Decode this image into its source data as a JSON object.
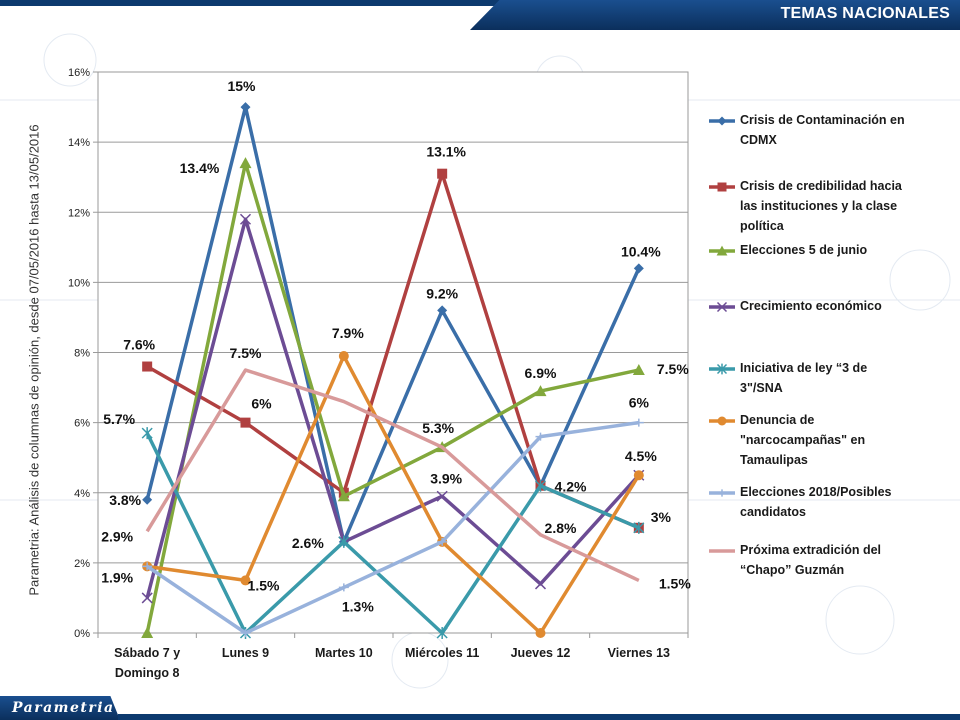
{
  "header": {
    "title": "TEMAS NACIONALES"
  },
  "side_caption": "Parametria: Análisis de columnas de opinión, desde 07/05/2016 hasta  13/05/2016",
  "footer": {
    "logo_text": "Parametria"
  },
  "chart_data": {
    "type": "line",
    "categories": [
      [
        "Sábado 7 y",
        "Domingo 8"
      ],
      [
        "Lunes 9"
      ],
      [
        "Martes 10"
      ],
      [
        "Miércoles 11"
      ],
      [
        "Jueves 12"
      ],
      [
        "Viernes 13"
      ]
    ],
    "y_ticks": [
      "0%",
      "2%",
      "4%",
      "6%",
      "8%",
      "10%",
      "12%",
      "14%",
      "16%"
    ],
    "ylim": [
      0,
      16
    ],
    "grid": true,
    "legend_position": "right",
    "series": [
      {
        "name": "Crisis de Contaminación en CDMX",
        "legend_lines": [
          "Crisis de Contaminación en",
          "CDMX"
        ],
        "color": "#3a6ea8",
        "marker": "diamond",
        "values": [
          3.8,
          15,
          2.6,
          9.2,
          4.2,
          10.4
        ],
        "labels": [
          "3.8%",
          "15%",
          "",
          "9.2%",
          "",
          "10.4%"
        ]
      },
      {
        "name": "Crisis de credibilidad hacia las instituciones y la clase política",
        "legend_lines": [
          "Crisis de credibilidad hacia",
          "las instituciones y la clase",
          "política"
        ],
        "color": "#b04040",
        "marker": "square",
        "values": [
          7.6,
          6,
          4,
          13.1,
          4.2,
          3
        ],
        "labels": [
          "7.6%",
          "6%",
          "",
          "13.1%",
          "4.2%",
          "3%"
        ]
      },
      {
        "name": "Elecciones 5 de junio",
        "legend_lines": [
          "Elecciones 5 de junio"
        ],
        "color": "#82a83c",
        "marker": "triangle",
        "values": [
          0,
          13.4,
          3.9,
          5.3,
          6.9,
          7.5
        ],
        "labels": [
          "",
          "13.4%",
          "",
          "5.3%",
          "6.9%",
          "7.5%"
        ]
      },
      {
        "name": "Crecimiento económico",
        "legend_lines": [
          "Crecimiento económico"
        ],
        "color": "#6c4c94",
        "marker": "x",
        "values": [
          1,
          11.8,
          2.6,
          3.9,
          1.4,
          4.5
        ],
        "labels": [
          "",
          "",
          "2.6%",
          "3.9%",
          "",
          ""
        ]
      },
      {
        "name": "Iniciativa de ley “3 de 3\"/SNA",
        "legend_lines": [
          "Iniciativa de ley “3 de",
          "3\"/SNA"
        ],
        "color": "#3a9aaa",
        "marker": "star",
        "values": [
          5.7,
          0,
          2.6,
          0,
          4.2,
          3
        ],
        "labels": [
          "5.7%",
          "",
          "",
          "",
          "",
          ""
        ]
      },
      {
        "name": "Denuncia de \"narcocampañas\" en Tamaulipas",
        "legend_lines": [
          "Denuncia de",
          "\"narcocampañas\" en",
          "Tamaulipas"
        ],
        "color": "#e08a30",
        "marker": "circle",
        "values": [
          1.9,
          1.5,
          7.9,
          2.6,
          0,
          4.5
        ],
        "labels": [
          "1.9%",
          "1.5%",
          "7.9%",
          "",
          "",
          "4.5%"
        ]
      },
      {
        "name": "Elecciones 2018/Posibles candidatos",
        "legend_lines": [
          "Elecciones 2018/Posibles",
          "candidatos"
        ],
        "color": "#98b2dc",
        "marker": "plus",
        "values": [
          1.9,
          0,
          1.3,
          2.6,
          5.6,
          6
        ],
        "labels": [
          "",
          "",
          "1.3%",
          "",
          "",
          "6%"
        ]
      },
      {
        "name": "Próxima extradición del “Chapo” Guzmán",
        "legend_lines": [
          "Próxima extradición del",
          "“Chapo” Guzmán"
        ],
        "color": "#d89a9a",
        "marker": "none",
        "values": [
          2.9,
          7.5,
          6.6,
          5.3,
          2.8,
          1.5
        ],
        "labels": [
          "2.9%",
          "7.5%",
          "",
          "",
          "2.8%",
          "1.5%"
        ]
      }
    ]
  }
}
